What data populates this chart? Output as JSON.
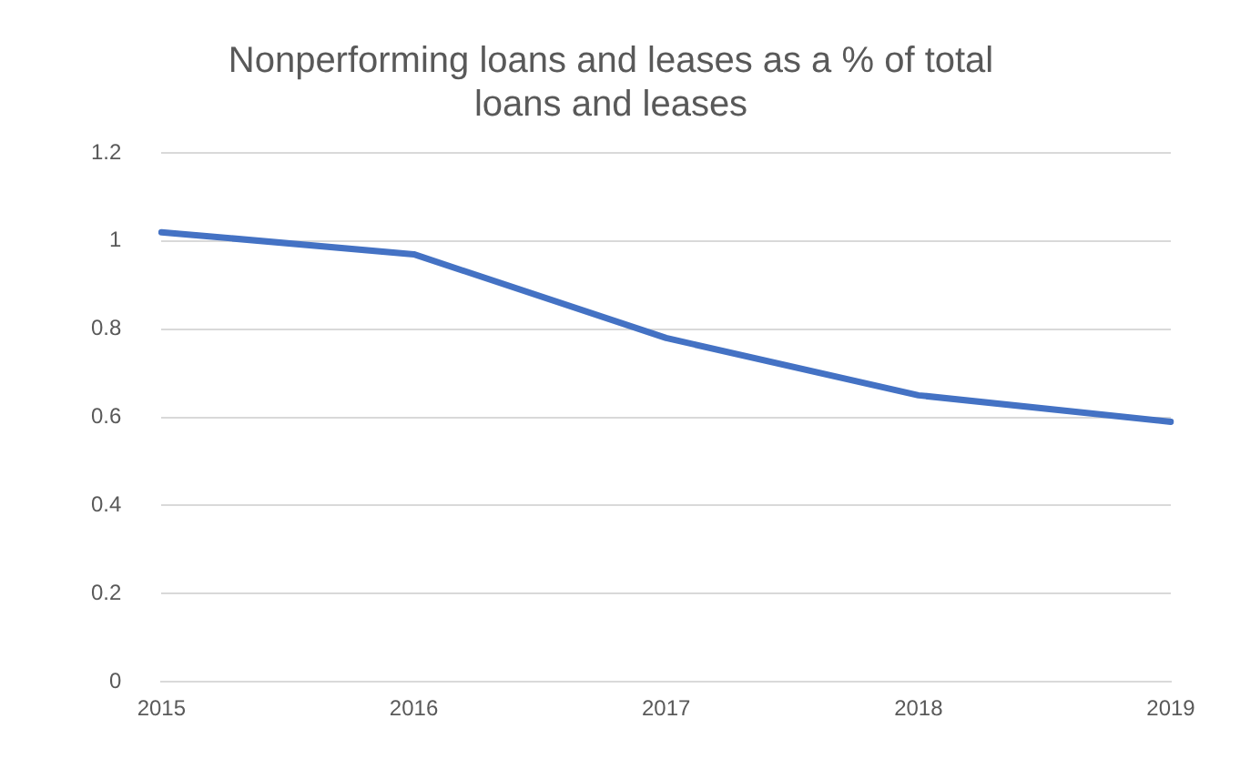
{
  "chart_data": {
    "type": "line",
    "title": "Nonperforming loans and leases as a % of total loans and leases",
    "categories": [
      "2015",
      "2016",
      "2017",
      "2018",
      "2019"
    ],
    "series": [
      {
        "color": "#4472c4",
        "values": [
          1.02,
          0.97,
          0.78,
          0.65,
          0.59
        ]
      }
    ],
    "ylim": [
      0,
      1.2
    ],
    "yticks": [
      0,
      0.2,
      0.4,
      0.6,
      0.8,
      1,
      1.2
    ],
    "grid": "y",
    "legend": false,
    "marker": "none",
    "line_style": "solid"
  }
}
